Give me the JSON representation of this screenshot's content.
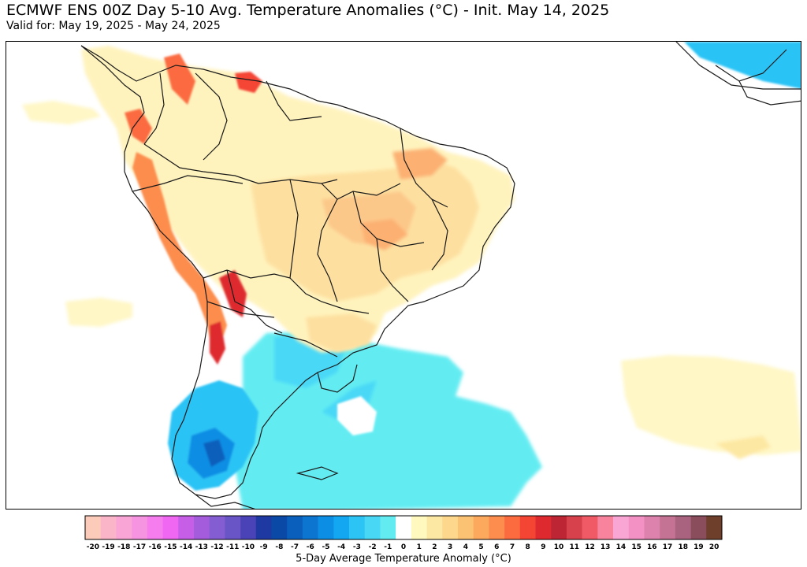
{
  "header": {
    "title": "ECMWF ENS 00Z Day 5-10 Avg. Temperature Anomalies (°C) - Init. May 14, 2025",
    "valid_for": "Valid for: May 19, 2025 - May 24, 2025"
  },
  "map": {
    "region": "South America",
    "field": "5-day average temperature anomaly",
    "pattern_summary": [
      {
        "area": "Brazil interior",
        "anomaly": "warm (+2 to +6)"
      },
      {
        "area": "Andes / Chile",
        "anomaly": "warm with cold streaks (-4 to +9)"
      },
      {
        "area": "Patagonia / South Atlantic",
        "anomaly": "cold (-1 to -9)"
      },
      {
        "area": "South Atlantic east",
        "anomaly": "slightly warm (+1 to +2)"
      }
    ]
  },
  "colorbar": {
    "label": "5-Day Average Temperature Anomaly (°C)",
    "ticks": [
      "-20",
      "-19",
      "-18",
      "-17",
      "-16",
      "-15",
      "-14",
      "-13",
      "-12",
      "-11",
      "-10",
      "-9",
      "-8",
      "-7",
      "-6",
      "-5",
      "-4",
      "-3",
      "-2",
      "-1",
      "0",
      "1",
      "2",
      "3",
      "4",
      "5",
      "6",
      "7",
      "8",
      "9",
      "10",
      "11",
      "12",
      "13",
      "14",
      "15",
      "16",
      "17",
      "18",
      "19",
      "20"
    ],
    "colors": [
      "#fdcbb9",
      "#fbb5c9",
      "#f9a6d6",
      "#f794e1",
      "#f57ded",
      "#f068f2",
      "#c75ee8",
      "#a45bdc",
      "#845dd2",
      "#6955c6",
      "#4a43b8",
      "#1e3aa2",
      "#0a49a6",
      "#0a5fbc",
      "#0b75d0",
      "#0b8ee4",
      "#12a7f0",
      "#2cc3f5",
      "#48d8f6",
      "#62ecf2",
      "#ffffff",
      "#fff8bf",
      "#fde8a3",
      "#fcd78c",
      "#fcc274",
      "#fca95e",
      "#fc8d4e",
      "#fb6b3f",
      "#f44434",
      "#de2a2f",
      "#bd2534",
      "#d6414c",
      "#ef5a66",
      "#f7839d",
      "#f9a6d4",
      "#f390c4",
      "#dd82ac",
      "#c57394",
      "#a9637e",
      "#8a4d5b",
      "#6e3f2a"
    ]
  }
}
